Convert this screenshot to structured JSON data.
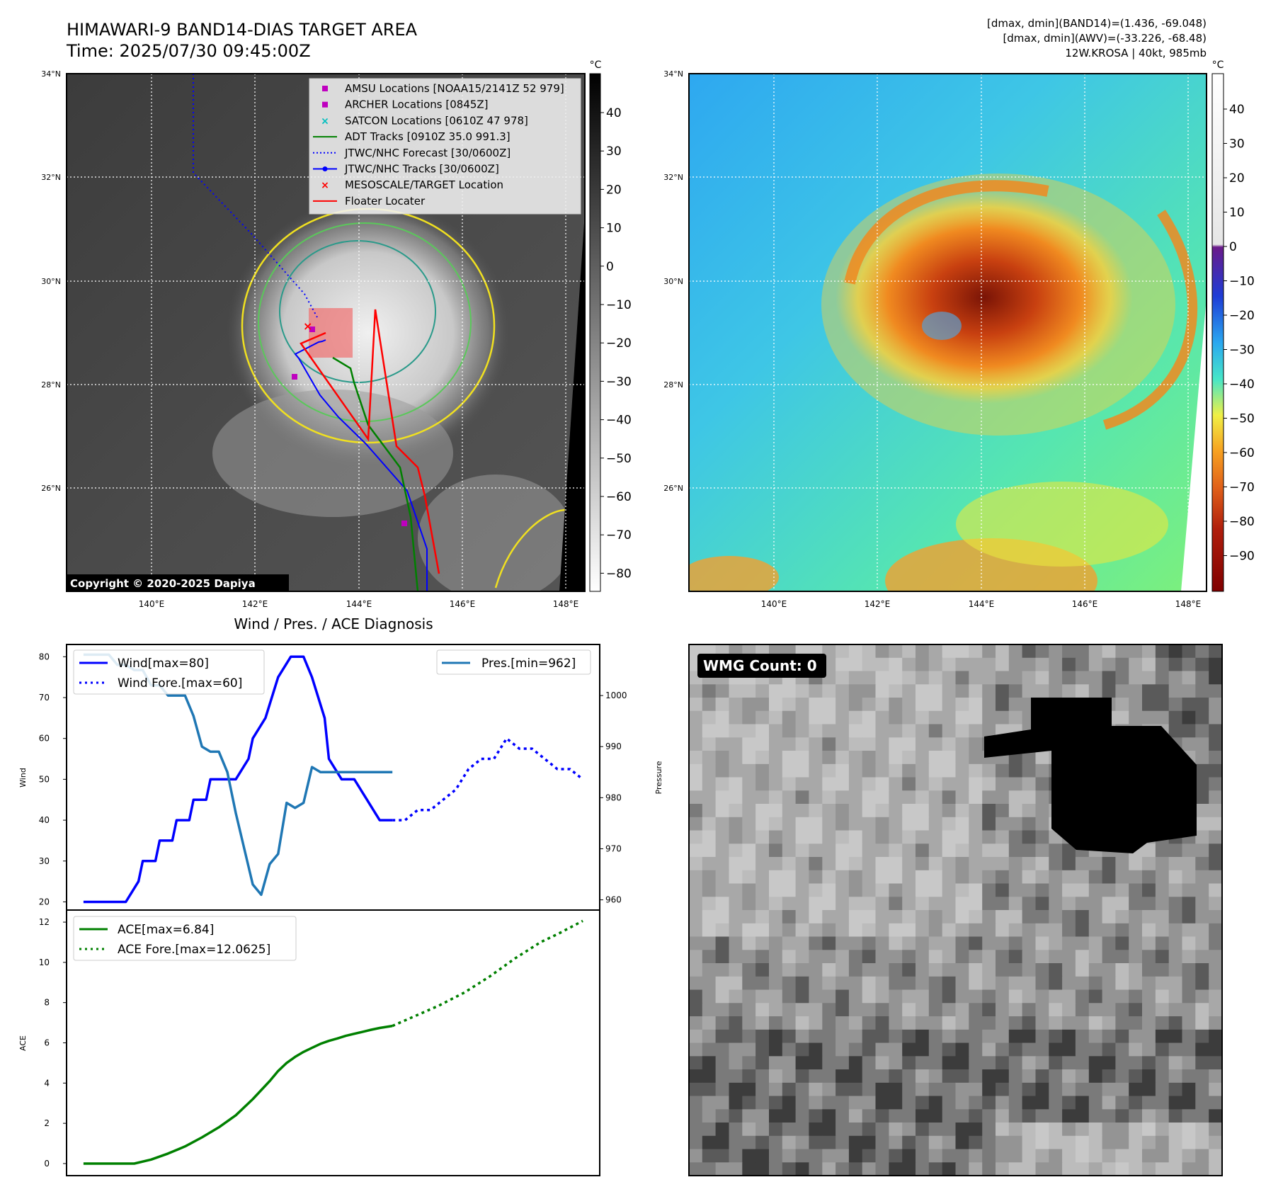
{
  "header": {
    "title_line1": "HIMAWARI-9 BAND14-DIAS TARGET AREA",
    "title_line2": "Time: 2025/07/30 09:45:00Z",
    "info_line1": "[dmax, dmin](BAND14)=(1.436, -69.048)",
    "info_line2": "[dmax, dmin](AWV)=(-33.226, -68.48)",
    "info_line3": "12W.KROSA | 40kt, 985mb"
  },
  "copyright": "Copyright © 2020-2025 Dapiya",
  "map": {
    "lat_labels": [
      "34°N",
      "32°N",
      "30°N",
      "28°N",
      "26°N"
    ],
    "lon_labels": [
      "140°E",
      "142°E",
      "144°E",
      "146°E",
      "148°E"
    ]
  },
  "ir_colorbar": {
    "unit": "°C",
    "ticks": [
      "40",
      "30",
      "20",
      "10",
      "0",
      "−10",
      "−20",
      "−30",
      "−40",
      "−50",
      "−60",
      "−70",
      "−80"
    ]
  },
  "awv_colorbar": {
    "unit": "°C",
    "ticks": [
      "40",
      "30",
      "20",
      "10",
      "0",
      "−10",
      "−20",
      "−30",
      "−40",
      "−50",
      "−60",
      "−70",
      "−80",
      "−90"
    ]
  },
  "legend": [
    {
      "label": "AMSU Locations [NOAA15/2141Z 52 979]",
      "marker": "square",
      "color": "#bf00bf"
    },
    {
      "label": "ARCHER Locations [0845Z]",
      "marker": "square",
      "color": "#bf00bf"
    },
    {
      "label": "SATCON Locations [0610Z 47 978]",
      "marker": "x",
      "color": "#00bfbf"
    },
    {
      "label": "ADT Tracks [0910Z 35.0 991.3]",
      "marker": "line",
      "color": "#008000"
    },
    {
      "label": "JTWC/NHC Forecast [30/0600Z]",
      "marker": "dotted",
      "color": "#0000ff"
    },
    {
      "label": "JTWC/NHC Tracks [30/0600Z]",
      "marker": "line-dot",
      "color": "#0000ff"
    },
    {
      "label": "MESOSCALE/TARGET Location",
      "marker": "x",
      "color": "#ff0000"
    },
    {
      "label": "Floater Locater",
      "marker": "line",
      "color": "#ff0000"
    }
  ],
  "wmg": {
    "label": "WMG Count: 0"
  },
  "chart_data": [
    {
      "type": "line",
      "title": "Wind / Pres. / ACE Diagnosis",
      "ylabel": "Wind",
      "y2label": "Pressure",
      "ylim": [
        18,
        83
      ],
      "y2lim": [
        958,
        1010
      ],
      "yticks": [
        20,
        30,
        40,
        50,
        60,
        70,
        80
      ],
      "y2ticks": [
        960,
        970,
        980,
        990,
        1000
      ],
      "legend_left": [
        "Wind[max=80]",
        "Wind Fore.[max=60]"
      ],
      "legend_right": [
        "Pres.[min=962]"
      ],
      "series": [
        {
          "name": "Wind[max=80]",
          "color": "#0000ff",
          "style": "solid",
          "axis": "left",
          "x": [
            0,
            1.5,
            3,
            4.5,
            5,
            6.5,
            7,
            8.5,
            9,
            10.5,
            11,
            12.5,
            13,
            14.5,
            15,
            16.5,
            18,
            19.5,
            20,
            21.5,
            23,
            24.5,
            25,
            26,
            27,
            28.5,
            29,
            30.5,
            32,
            33.5,
            35,
            36.5
          ],
          "y": [
            20,
            20,
            20,
            20,
            20,
            25,
            30,
            30,
            35,
            35,
            40,
            40,
            45,
            45,
            50,
            50,
            50,
            55,
            60,
            65,
            75,
            80,
            80,
            80,
            75,
            65,
            55,
            50,
            50,
            45,
            40,
            40
          ]
        },
        {
          "name": "Wind Fore.[max=60]",
          "color": "#0000ff",
          "style": "dotted",
          "axis": "left",
          "x": [
            36.5,
            38,
            39.5,
            41,
            42.5,
            44,
            45.5,
            47,
            48.5,
            50,
            51.5,
            53,
            54.5,
            56,
            57.5,
            59
          ],
          "y": [
            40,
            40,
            42.5,
            42.5,
            45,
            47.5,
            52.5,
            55,
            55,
            60,
            57.5,
            57.5,
            55,
            52.5,
            52.5,
            50
          ]
        },
        {
          "name": "Pres.[min=962]",
          "color": "#1f77b4",
          "style": "solid",
          "axis": "right",
          "x": [
            0,
            1.5,
            3,
            4,
            5,
            6,
            7,
            8,
            9,
            10,
            11,
            12,
            13,
            14,
            15,
            16,
            17,
            18,
            19,
            20,
            21,
            22,
            23,
            24,
            25,
            26,
            27,
            28,
            29,
            30,
            31,
            32,
            33,
            34,
            35,
            36.5
          ],
          "y": [
            1008,
            1008,
            1008,
            1006,
            1006,
            1005,
            1005,
            1002,
            1002,
            1000,
            1000,
            1000,
            996,
            990,
            989,
            989,
            985,
            977,
            970,
            963,
            961,
            967,
            969,
            979,
            978,
            979,
            986,
            985,
            985,
            985,
            985,
            985,
            985,
            985,
            985,
            985
          ]
        }
      ]
    },
    {
      "type": "line",
      "ylabel": "ACE",
      "ylim": [
        -0.6,
        12.6
      ],
      "yticks": [
        0,
        2,
        4,
        6,
        8,
        10,
        12
      ],
      "legend": [
        "ACE[max=6.84]",
        "ACE Fore.[max=12.0625]"
      ],
      "series": [
        {
          "name": "ACE[max=6.84]",
          "color": "#008000",
          "style": "solid",
          "x": [
            0,
            3,
            6,
            8,
            10,
            12,
            14,
            16,
            18,
            20,
            22,
            23,
            24,
            25,
            26,
            27,
            28,
            29,
            30,
            31,
            32,
            33,
            34,
            35,
            36.5
          ],
          "y": [
            0,
            0,
            0,
            0.2,
            0.5,
            0.85,
            1.3,
            1.8,
            2.4,
            3.2,
            4.1,
            4.6,
            5.0,
            5.3,
            5.55,
            5.75,
            5.95,
            6.1,
            6.22,
            6.35,
            6.45,
            6.55,
            6.65,
            6.74,
            6.84
          ]
        },
        {
          "name": "ACE Fore.[max=12.0625]",
          "color": "#008000",
          "style": "dotted",
          "x": [
            36.5,
            39,
            42,
            45,
            48,
            51,
            54,
            56,
            59
          ],
          "y": [
            6.84,
            7.3,
            7.85,
            8.5,
            9.3,
            10.2,
            11.0,
            11.4,
            12.06
          ]
        }
      ]
    }
  ]
}
